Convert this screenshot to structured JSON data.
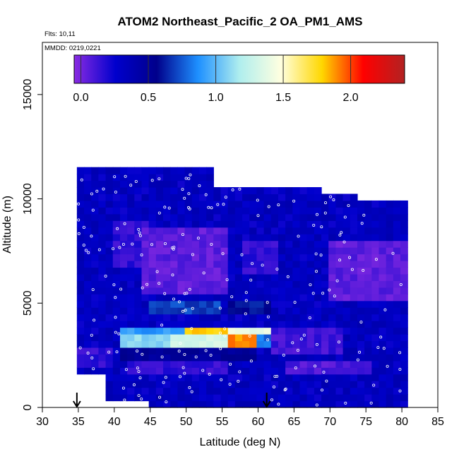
{
  "chart_data": {
    "type": "heatmap",
    "title": "ATOM2 Northeast_Pacific_2 OA_PM1_AMS",
    "flights_text": "Flts: 10,11",
    "dates_text": "MMDD: 0219,0221",
    "xlabel": "Latitude (deg N)",
    "ylabel": "Altitude (m)",
    "xlim": [
      30,
      85
    ],
    "ylim": [
      0,
      17500
    ],
    "x_ticks": [
      30,
      35,
      40,
      45,
      50,
      55,
      60,
      65,
      70,
      75,
      80,
      85
    ],
    "y_ticks": [
      0,
      5000,
      10000,
      15000
    ],
    "colorbar": {
      "range": [
        -0.05,
        2.4
      ],
      "ticks": [
        0.0,
        0.5,
        1.0,
        1.5,
        2.0
      ],
      "tick_labels": [
        "0.0",
        "0.5",
        "1.0",
        "1.5",
        "2.0"
      ],
      "colors": [
        "#8a2be2",
        "#0000cd",
        "#00008b",
        "#1e90ff",
        "#afeeee",
        "#ffffe0",
        "#ffd700",
        "#ff0000",
        "#b22222"
      ]
    },
    "coverage": [
      {
        "lat_min": 34.8,
        "lat_max": 38.5,
        "alt_min": 1500,
        "alt_max": 11500
      },
      {
        "lat_min": 38.5,
        "lat_max": 45,
        "alt_min": 300,
        "alt_max": 11500
      },
      {
        "lat_min": 45,
        "lat_max": 54,
        "alt_min": 0,
        "alt_max": 11500
      },
      {
        "lat_min": 54,
        "lat_max": 69,
        "alt_min": 0,
        "alt_max": 10500
      },
      {
        "lat_min": 69,
        "lat_max": 74,
        "alt_min": 0,
        "alt_max": 10300
      },
      {
        "lat_min": 74,
        "lat_max": 80.5,
        "alt_min": 0,
        "alt_max": 9800
      }
    ],
    "features": [
      {
        "lat_min": 40,
        "lat_max": 45,
        "alt_min": 6800,
        "alt_max": 9000,
        "value": 0.15
      },
      {
        "lat_min": 44,
        "lat_max": 56,
        "alt_min": 5500,
        "alt_max": 8500,
        "value": 0.05
      },
      {
        "lat_min": 58,
        "lat_max": 63,
        "alt_min": 6500,
        "alt_max": 8000,
        "value": 0.15
      },
      {
        "lat_min": 35,
        "lat_max": 40,
        "alt_min": 2000,
        "alt_max": 3000,
        "value": 0.15
      },
      {
        "lat_min": 45,
        "lat_max": 55,
        "alt_min": 4400,
        "alt_max": 5000,
        "value": 0.7
      },
      {
        "lat_min": 56,
        "lat_max": 62,
        "alt_min": 4400,
        "alt_max": 5000,
        "value": 0.6
      },
      {
        "lat_min": 41,
        "lat_max": 50,
        "alt_min": 3500,
        "alt_max": 4000,
        "value": 0.9
      },
      {
        "lat_min": 50,
        "lat_max": 56,
        "alt_min": 3500,
        "alt_max": 4000,
        "value": 1.8
      },
      {
        "lat_min": 56,
        "lat_max": 62,
        "alt_min": 3500,
        "alt_max": 4000,
        "value": 1.4
      },
      {
        "lat_min": 41,
        "lat_max": 48,
        "alt_min": 2800,
        "alt_max": 3500,
        "value": 1.1
      },
      {
        "lat_min": 48,
        "lat_max": 56,
        "alt_min": 2800,
        "alt_max": 3500,
        "value": 1.3
      },
      {
        "lat_min": 56,
        "lat_max": 60,
        "alt_min": 2800,
        "alt_max": 3500,
        "value": 1.9
      },
      {
        "lat_min": 60,
        "lat_max": 62,
        "alt_min": 2800,
        "alt_max": 3500,
        "value": 0.8
      },
      {
        "lat_min": 41,
        "lat_max": 60,
        "alt_min": 2300,
        "alt_max": 2800,
        "value": 0.5
      },
      {
        "lat_min": 62,
        "lat_max": 72,
        "alt_min": 2500,
        "alt_max": 4000,
        "value": 0.12
      },
      {
        "lat_min": 42,
        "lat_max": 56,
        "alt_min": 1600,
        "alt_max": 2300,
        "value": 0.15
      },
      {
        "lat_min": 64,
        "lat_max": 76,
        "alt_min": 1500,
        "alt_max": 2200,
        "value": 0.08
      },
      {
        "lat_min": 70,
        "lat_max": 80.5,
        "alt_min": 5000,
        "alt_max": 8000,
        "value": 0.05
      }
    ],
    "sounding_markers": [
      {
        "lat": 34.8,
        "direction": "down"
      },
      {
        "lat": 61.2,
        "direction": "down"
      }
    ]
  }
}
